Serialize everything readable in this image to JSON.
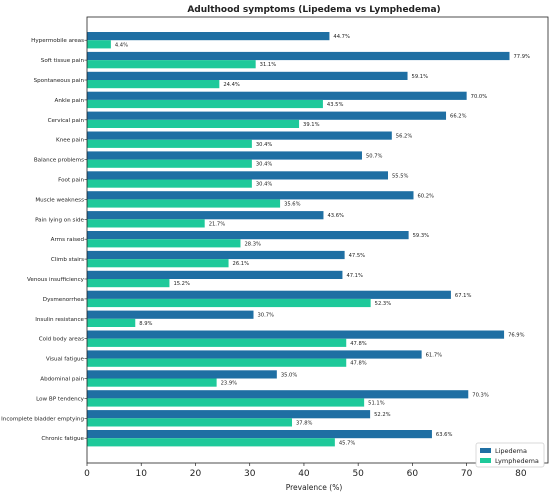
{
  "chart_data": {
    "type": "bar",
    "orientation": "horizontal",
    "title": "Adulthood symptoms (Lipedema vs Lymphedema)",
    "xlabel": "Prevalence (%)",
    "ylabel": "",
    "xlim": [
      0,
      85
    ],
    "xticks": [
      0,
      10,
      20,
      30,
      40,
      50,
      60,
      70,
      80
    ],
    "grid": false,
    "legend_position": "bottom-right",
    "categories": [
      "Hypermobile areas",
      "Soft tissue pain",
      "Spontaneous pain",
      "Ankle pain",
      "Cervical pain",
      "Knee pain",
      "Balance problems",
      "Foot pain",
      "Muscle weakness",
      "Pain lying on side",
      "Arms raised",
      "Climb stairs",
      "Venous insufficiency",
      "Dysmenorrhea",
      "Insulin resistance",
      "Cold body areas",
      "Visual fatigue",
      "Abdominal pain",
      "Low BP tendency",
      "Incomplete bladder emptying",
      "Chronic fatigue"
    ],
    "series": [
      {
        "name": "Lipedema",
        "color": "#1f6fa3",
        "values": [
          44.7,
          77.9,
          59.1,
          70.0,
          66.2,
          56.2,
          50.7,
          55.5,
          60.2,
          43.6,
          59.3,
          47.5,
          47.1,
          67.1,
          30.7,
          76.9,
          61.7,
          35.0,
          70.3,
          52.2,
          63.6
        ],
        "labels": [
          "44.7%",
          "77.9%",
          "59.1%",
          "70.0%",
          "66.2%",
          "56.2%",
          "50.7%",
          "55.5%",
          "60.2%",
          "43.6%",
          "59.3%",
          "47.5%",
          "47.1%",
          "67.1%",
          "30.7%",
          "76.9%",
          "61.7%",
          "35.0%",
          "70.3%",
          "52.2%",
          "63.6%"
        ]
      },
      {
        "name": "Lymphedema",
        "color": "#1ec99a",
        "values": [
          4.4,
          31.1,
          24.4,
          43.5,
          39.1,
          30.4,
          30.4,
          30.4,
          35.6,
          21.7,
          28.3,
          26.1,
          15.2,
          52.3,
          8.9,
          47.8,
          47.8,
          23.9,
          51.1,
          37.8,
          45.7
        ],
        "labels": [
          "4.4%",
          "31.1%",
          "24.4%",
          "43.5%",
          "39.1%",
          "30.4%",
          "30.4%",
          "30.4%",
          "35.6%",
          "21.7%",
          "28.3%",
          "26.1%",
          "15.2%",
          "52.3%",
          "8.9%",
          "47.8%",
          "47.8%",
          "23.9%",
          "51.1%",
          "37.8%",
          "45.7%"
        ]
      }
    ]
  }
}
